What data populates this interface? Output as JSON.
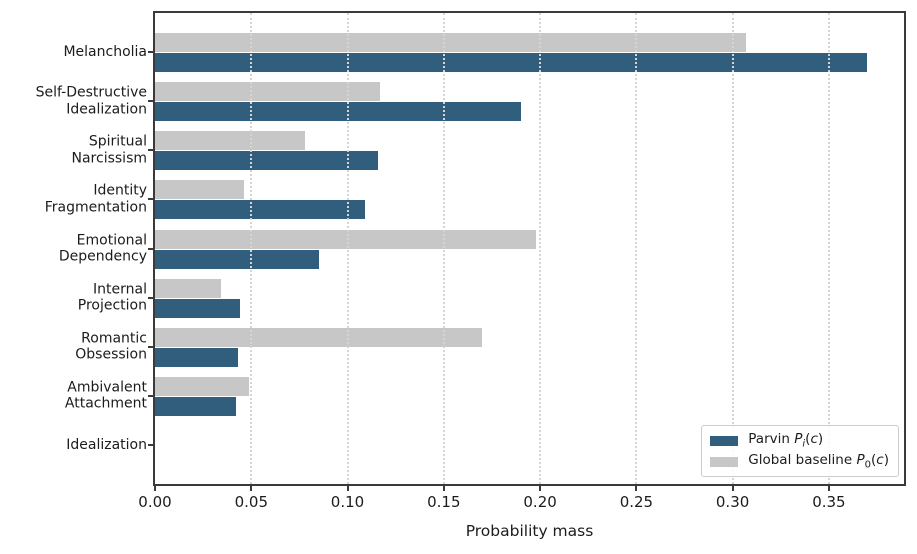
{
  "chart_data": {
    "type": "bar",
    "orientation": "horizontal",
    "title": "",
    "xlabel": "Probability mass",
    "categories": [
      "Melancholia",
      "Self-Destructive\nIdealization",
      "Spiritual\nNarcissism",
      "Identity\nFragmentation",
      "Emotional\nDependency",
      "Internal\nProjection",
      "Romantic\nObsession",
      "Ambivalent\nAttachment",
      "Idealization"
    ],
    "series": [
      {
        "name": "Parvin P_i(c)",
        "color": "#315e7d",
        "values": [
          0.37,
          0.19,
          0.116,
          0.109,
          0.085,
          0.044,
          0.043,
          0.042,
          0.0
        ]
      },
      {
        "name": "Global baseline P_0(c)",
        "color": "#c7c7c7",
        "values": [
          0.307,
          0.117,
          0.078,
          0.046,
          0.198,
          0.034,
          0.17,
          0.049,
          0.0
        ]
      }
    ],
    "x_ticks": [
      "0.00",
      "0.05",
      "0.10",
      "0.15",
      "0.20",
      "0.25",
      "0.30",
      "0.35"
    ],
    "x_tick_values": [
      0.0,
      0.05,
      0.1,
      0.15,
      0.2,
      0.25,
      0.3,
      0.35
    ],
    "xlim": [
      0,
      0.389
    ],
    "grid": "vertical-dotted",
    "legend_position": "lower right",
    "legend": [
      {
        "label": "Parvin P_i(c)",
        "color": "#315e7d"
      },
      {
        "label": "Global baseline P_0(c)",
        "color": "#c7c7c7"
      }
    ]
  },
  "colors": {
    "parvin_blue": "#315e7d",
    "baseline_gray": "#c7c7c7",
    "spine": "#3a3a3a",
    "gridline": "#d5d5d5",
    "text": "#1c1c1c",
    "legend_border": "#cccccc"
  }
}
